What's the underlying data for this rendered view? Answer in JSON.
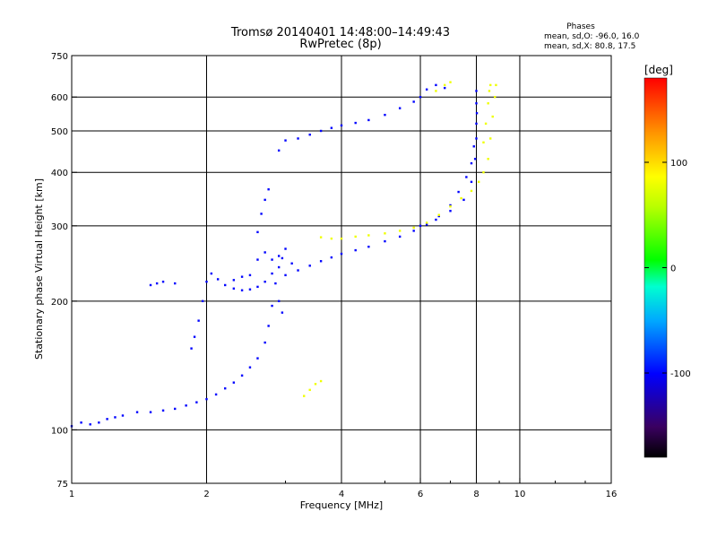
{
  "figure": {
    "title": "Tromsø 20140401 14:48:00–14:49:43",
    "subtitle": "RwPretec (8p)"
  },
  "phase_stats": {
    "heading": "Phases",
    "o_line": "mean, sd,O: -96.0, 16.0",
    "x_line": "mean, sd,X:  80.8, 17.5"
  },
  "colorbar": {
    "unit_label": "[deg]",
    "ticks": [
      {
        "value": 100,
        "label": "100"
      },
      {
        "value": 0,
        "label": "0"
      },
      {
        "value": -100,
        "label": "-100"
      }
    ],
    "range": [
      -180,
      180
    ]
  },
  "chart_data": {
    "type": "scatter",
    "xlabel": "Frequency [MHz]",
    "ylabel": "Stationary phase Virtual Height [km]",
    "x_scale": "log",
    "y_scale": "log",
    "xlim": [
      1,
      16
    ],
    "ylim": [
      75,
      750
    ],
    "x_ticks": [
      1,
      2,
      4,
      6,
      8,
      10,
      16
    ],
    "y_ticks": [
      75,
      100,
      200,
      300,
      400,
      500,
      600,
      750
    ],
    "grid": true,
    "series": [
      {
        "mode": "O",
        "color_phase": -100,
        "points": [
          [
            1.0,
            102
          ],
          [
            1.05,
            104
          ],
          [
            1.1,
            103
          ],
          [
            1.15,
            104
          ],
          [
            1.2,
            106
          ],
          [
            1.25,
            107
          ],
          [
            1.3,
            108
          ],
          [
            1.4,
            110
          ],
          [
            1.5,
            110
          ],
          [
            1.6,
            111
          ],
          [
            1.7,
            112
          ],
          [
            1.8,
            114
          ],
          [
            1.9,
            116
          ],
          [
            2.0,
            118
          ],
          [
            2.1,
            121
          ],
          [
            2.2,
            125
          ],
          [
            2.3,
            129
          ],
          [
            2.4,
            134
          ],
          [
            2.5,
            140
          ],
          [
            2.6,
            147
          ],
          [
            2.7,
            160
          ],
          [
            2.75,
            175
          ],
          [
            2.8,
            195
          ],
          [
            2.85,
            220
          ],
          [
            2.9,
            240
          ],
          [
            2.95,
            252
          ],
          [
            1.85,
            155
          ],
          [
            1.88,
            165
          ],
          [
            1.92,
            180
          ],
          [
            1.96,
            200
          ],
          [
            2.0,
            222
          ],
          [
            2.05,
            232
          ],
          [
            2.12,
            225
          ],
          [
            2.2,
            218
          ],
          [
            2.3,
            214
          ],
          [
            2.4,
            212
          ],
          [
            2.5,
            213
          ],
          [
            2.6,
            216
          ],
          [
            2.7,
            222
          ],
          [
            2.8,
            232
          ],
          [
            2.6,
            290
          ],
          [
            2.65,
            320
          ],
          [
            2.7,
            345
          ],
          [
            2.75,
            365
          ],
          [
            2.6,
            250
          ],
          [
            2.7,
            260
          ],
          [
            2.8,
            250
          ],
          [
            2.9,
            255
          ],
          [
            3.0,
            265
          ],
          [
            3.1,
            245
          ],
          [
            3.0,
            230
          ],
          [
            3.2,
            236
          ],
          [
            3.4,
            242
          ],
          [
            3.6,
            248
          ],
          [
            3.8,
            253
          ],
          [
            4.0,
            258
          ],
          [
            4.3,
            263
          ],
          [
            4.6,
            268
          ],
          [
            5.0,
            276
          ],
          [
            5.4,
            283
          ],
          [
            5.8,
            292
          ],
          [
            6.2,
            302
          ],
          [
            6.6,
            316
          ],
          [
            7.0,
            335
          ],
          [
            7.3,
            360
          ],
          [
            7.6,
            390
          ],
          [
            7.8,
            420
          ],
          [
            7.9,
            460
          ],
          [
            8.0,
            520
          ],
          [
            8.0,
            580
          ],
          [
            8.0,
            620
          ],
          [
            6.0,
            300
          ],
          [
            6.5,
            310
          ],
          [
            7.0,
            325
          ],
          [
            7.5,
            345
          ],
          [
            7.8,
            380
          ],
          [
            7.95,
            430
          ],
          [
            8.0,
            480
          ],
          [
            8.02,
            550
          ],
          [
            2.9,
            450
          ],
          [
            3.0,
            475
          ],
          [
            3.2,
            480
          ],
          [
            3.4,
            490
          ],
          [
            3.6,
            500
          ],
          [
            3.8,
            508
          ],
          [
            4.0,
            515
          ],
          [
            4.3,
            522
          ],
          [
            4.6,
            530
          ],
          [
            5.0,
            545
          ],
          [
            5.4,
            565
          ],
          [
            5.8,
            585
          ],
          [
            6.0,
            600
          ],
          [
            6.2,
            625
          ],
          [
            6.5,
            640
          ],
          [
            6.8,
            630
          ],
          [
            1.5,
            218
          ],
          [
            1.6,
            222
          ],
          [
            1.7,
            220
          ],
          [
            1.55,
            220
          ],
          [
            2.3,
            224
          ],
          [
            2.4,
            228
          ],
          [
            2.5,
            230
          ],
          [
            2.9,
            200
          ],
          [
            2.95,
            188
          ]
        ]
      },
      {
        "mode": "X",
        "color_phase": 80,
        "points": [
          [
            3.6,
            282
          ],
          [
            3.8,
            280
          ],
          [
            4.0,
            280
          ],
          [
            4.3,
            283
          ],
          [
            4.6,
            285
          ],
          [
            5.0,
            288
          ],
          [
            5.4,
            292
          ],
          [
            5.8,
            297
          ],
          [
            6.2,
            305
          ],
          [
            6.6,
            318
          ],
          [
            7.0,
            333
          ],
          [
            7.4,
            348
          ],
          [
            7.8,
            362
          ],
          [
            8.1,
            380
          ],
          [
            8.3,
            400
          ],
          [
            8.5,
            430
          ],
          [
            8.6,
            480
          ],
          [
            8.7,
            540
          ],
          [
            8.8,
            600
          ],
          [
            8.85,
            640
          ],
          [
            8.3,
            470
          ],
          [
            8.4,
            520
          ],
          [
            8.5,
            580
          ],
          [
            8.55,
            620
          ],
          [
            8.6,
            640
          ],
          [
            3.3,
            120
          ],
          [
            3.4,
            124
          ],
          [
            3.5,
            128
          ],
          [
            3.6,
            130
          ],
          [
            6.5,
            620
          ],
          [
            6.8,
            640
          ],
          [
            7.0,
            650
          ]
        ]
      }
    ]
  }
}
